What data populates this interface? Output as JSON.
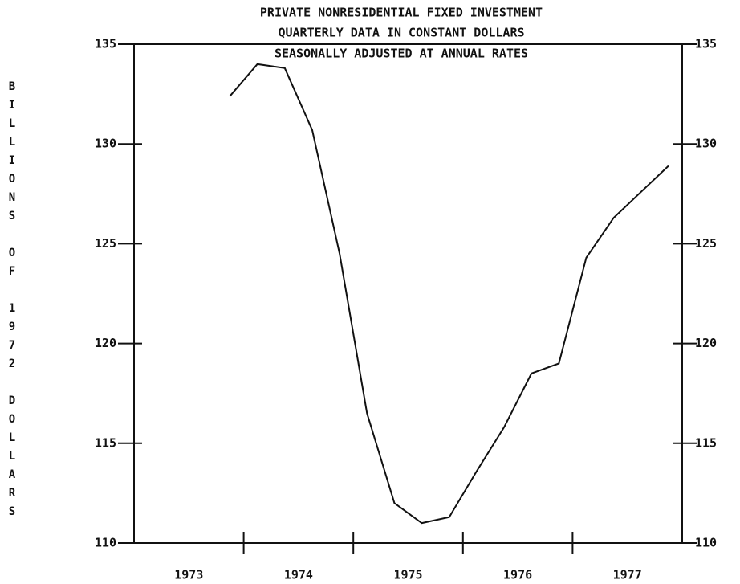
{
  "chart_data": {
    "type": "line",
    "title": "PRIVATE NONRESIDENTIAL FIXED INVESTMENT",
    "subtitle": "QUARTERLY DATA IN CONSTANT DOLLARS",
    "subtitle2": "SEASONALLY ADJUSTED AT ANNUAL RATES",
    "y_label": "BILLIONS OF 1972 DOLLARS",
    "x": [
      1973.875,
      1974.125,
      1974.375,
      1974.625,
      1974.875,
      1975.125,
      1975.375,
      1975.625,
      1975.875,
      1976.125,
      1976.375,
      1976.625,
      1976.875,
      1977.125,
      1977.375,
      1977.625,
      1977.875
    ],
    "series": [
      {
        "name": "Private nonresidential fixed investment",
        "color": "#111111",
        "values": [
          132.4,
          134.0,
          133.8,
          130.7,
          124.5,
          116.5,
          112.0,
          111.0,
          111.3,
          113.6,
          115.8,
          118.5,
          119.0,
          124.3,
          126.3,
          127.6,
          128.9
        ]
      }
    ],
    "xlim": [
      1973,
      1978
    ],
    "xticks": [
      1974,
      1975,
      1976,
      1977
    ],
    "xlabels": [
      {
        "value": 1973.5,
        "label": "1973"
      },
      {
        "value": 1974.5,
        "label": "1974"
      },
      {
        "value": 1975.5,
        "label": "1975"
      },
      {
        "value": 1976.5,
        "label": "1976"
      },
      {
        "value": 1977.5,
        "label": "1977"
      }
    ],
    "ylim": [
      110,
      135
    ],
    "yticks": [
      110,
      115,
      120,
      125,
      130,
      135
    ],
    "y2ticks": [
      110,
      115,
      120,
      125,
      130,
      135
    ],
    "grid": false
  }
}
